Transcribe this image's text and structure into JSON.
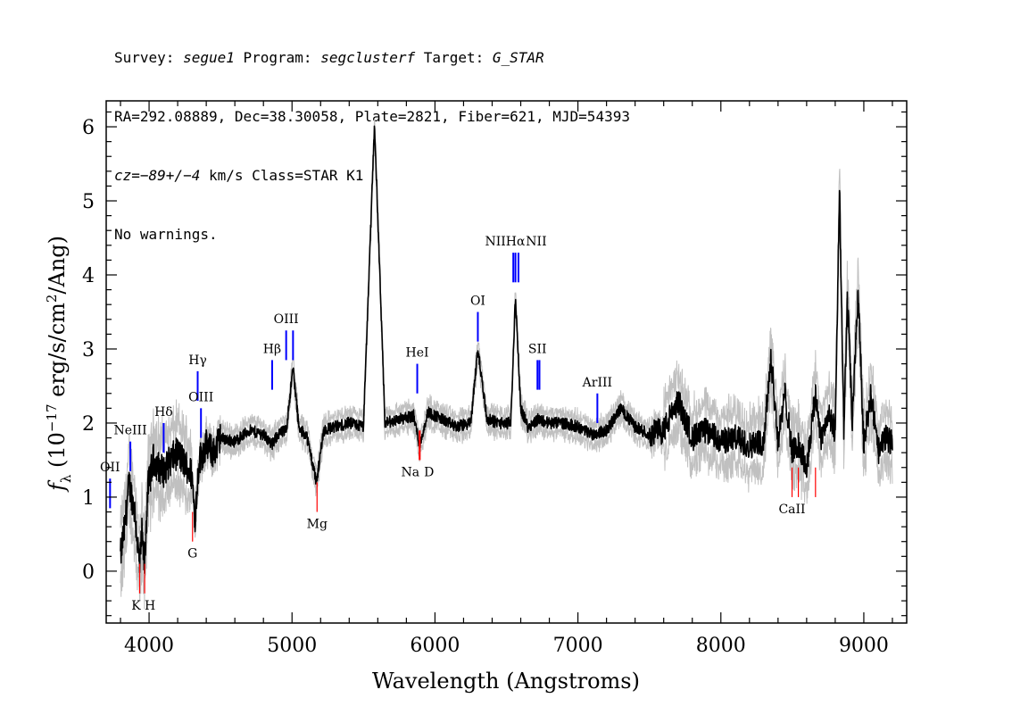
{
  "header": {
    "line1": {
      "survey_label": "Survey: ",
      "survey": "segue1",
      "program_label": " Program: ",
      "program": "segclusterf",
      "target_label": " Target: ",
      "target": "G_STAR"
    },
    "line2": "RA=292.08889, Dec=38.30058, Plate=2821, Fiber=621, MJD=54393",
    "line3": {
      "cz": "cz=−89+/−4",
      "rest": " km/s Class=STAR K1"
    },
    "line4": "No warnings."
  },
  "chart_data": {
    "type": "line",
    "xlabel": "Wavelength (Angstroms)",
    "ylabel": "f_λ (10^-17 erg/s/cm^2/Ang)",
    "xlim": [
      3700,
      9300
    ],
    "ylim": [
      -0.7,
      6.35
    ],
    "x_ticks": [
      4000,
      5000,
      6000,
      7000,
      8000,
      9000
    ],
    "y_ticks": [
      0,
      1,
      2,
      3,
      4,
      5,
      6
    ],
    "colors": {
      "flux": "#000000",
      "error": "#c0c0c0",
      "emission": "#0000ff",
      "absorption": "#ff0000"
    },
    "series": [
      {
        "name": "flux",
        "x": [
          3800,
          3830,
          3860,
          3900,
          3934,
          3950,
          3968,
          3990,
          4030,
          4070,
          4102,
          4150,
          4200,
          4250,
          4300,
          4320,
          4350,
          4400,
          4450,
          4500,
          4600,
          4700,
          4800,
          4861,
          4900,
          4959,
          5007,
          5050,
          5100,
          5172,
          5220,
          5300,
          5400,
          5500,
          5577,
          5650,
          5750,
          5850,
          5893,
          5950,
          6050,
          6150,
          6250,
          6300,
          6364,
          6450,
          6530,
          6563,
          6600,
          6650,
          6720,
          6800,
          6900,
          7000,
          7100,
          7200,
          7300,
          7400,
          7500,
          7600,
          7700,
          7800,
          7900,
          8000,
          8100,
          8200,
          8300,
          8350,
          8400,
          8450,
          8500,
          8542,
          8600,
          8662,
          8700,
          8750,
          8800,
          8830,
          8860,
          8885,
          8920,
          8960,
          9000,
          9050,
          9100,
          9150,
          9200
        ],
        "values": [
          0.2,
          0.6,
          1.2,
          0.8,
          0.05,
          0.5,
          0.05,
          1.1,
          1.5,
          1.4,
          1.35,
          1.5,
          1.6,
          1.45,
          1.3,
          0.7,
          1.5,
          1.7,
          1.6,
          1.8,
          1.75,
          1.9,
          1.85,
          1.7,
          1.85,
          1.9,
          2.75,
          1.9,
          1.85,
          1.2,
          1.9,
          1.95,
          2.0,
          1.95,
          6.05,
          2.0,
          2.05,
          2.1,
          1.7,
          2.15,
          2.05,
          1.95,
          2.0,
          3.0,
          2.05,
          2.0,
          2.0,
          3.7,
          2.2,
          1.95,
          2.05,
          2.0,
          2.0,
          1.95,
          1.85,
          1.9,
          2.2,
          1.95,
          1.85,
          1.9,
          2.3,
          1.8,
          1.9,
          1.75,
          1.8,
          1.7,
          1.75,
          2.9,
          1.75,
          2.4,
          1.6,
          1.7,
          1.4,
          2.4,
          1.8,
          2.1,
          1.9,
          5.2,
          1.9,
          3.7,
          2.0,
          3.8,
          1.7,
          2.4,
          1.6,
          1.8,
          1.75
        ]
      }
    ],
    "emission_lines": [
      {
        "label": "OII",
        "x": 3727
      },
      {
        "label": "NeIII",
        "x": 3869
      },
      {
        "label": "Hδ",
        "x": 4102
      },
      {
        "label": "Hγ",
        "x": 4340
      },
      {
        "label": "OIII",
        "x": 4363
      },
      {
        "label": "Hβ",
        "x": 4861
      },
      {
        "label": "OIII",
        "x": 4959
      },
      {
        "label": "OIII",
        "x": 5007
      },
      {
        "label": "HeI",
        "x": 5876
      },
      {
        "label": "OI",
        "x": 6300
      },
      {
        "label": "NII",
        "x": 6548
      },
      {
        "label": "Hα",
        "x": 6563
      },
      {
        "label": "NII",
        "x": 6584
      },
      {
        "label": "SII",
        "x": 6717
      },
      {
        "label": "SII",
        "x": 6731
      },
      {
        "label": "ArIII",
        "x": 7136
      }
    ],
    "absorption_lines": [
      {
        "label": "K",
        "x": 3934
      },
      {
        "label": "H",
        "x": 3969
      },
      {
        "label": "G",
        "x": 4304
      },
      {
        "label": "Mg",
        "x": 5175
      },
      {
        "label": "Na",
        "x": 5890
      },
      {
        "label": "D",
        "x": 5896
      },
      {
        "label": "CaII",
        "x": 8498
      },
      {
        "label": "CaII",
        "x": 8542
      },
      {
        "label": "CaII",
        "x": 8662
      }
    ]
  }
}
